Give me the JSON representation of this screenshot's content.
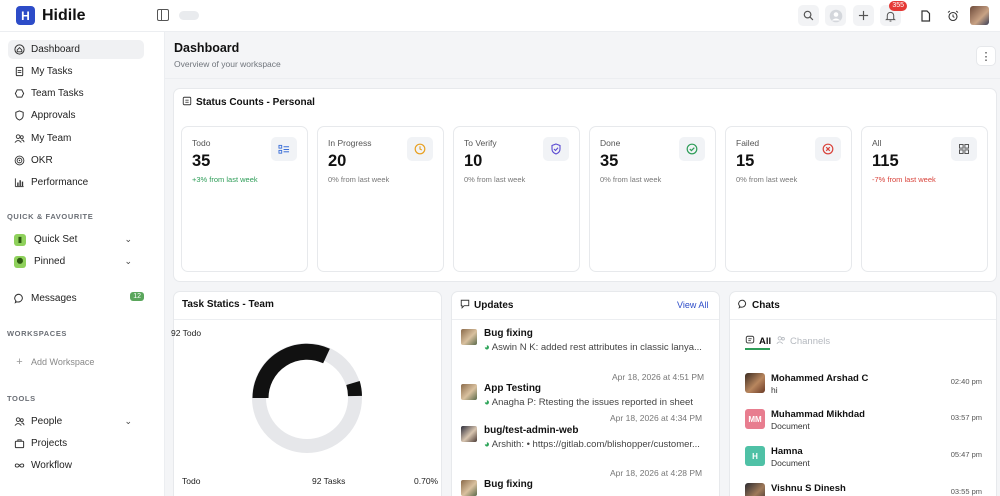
{
  "brand": {
    "logo_letter": "H",
    "name": "Hidile"
  },
  "topbar": {
    "notification_count": "355",
    "icons": [
      "sidebar-toggle-icon",
      "search-icon",
      "user-icon",
      "plus-icon",
      "bell-icon",
      "file-icon",
      "alarm-icon"
    ]
  },
  "sidebar": {
    "main_items": [
      {
        "label": "Dashboard",
        "icon": "home-icon",
        "active": true
      },
      {
        "label": "My Tasks",
        "icon": "clipboard-icon"
      },
      {
        "label": "Team Tasks",
        "icon": "team-tasks-icon"
      },
      {
        "label": "Approvals",
        "icon": "shield-icon"
      },
      {
        "label": "My Team",
        "icon": "users-icon"
      },
      {
        "label": "OKR",
        "icon": "target-icon"
      },
      {
        "label": "Performance",
        "icon": "bar-chart-icon"
      }
    ],
    "quick_favourite_label": "QUICK & FAVOURITE",
    "quick_items": [
      {
        "label": "Quick Set"
      },
      {
        "label": "Pinned"
      }
    ],
    "messages": {
      "label": "Messages",
      "count": "12"
    },
    "workspaces_label": "WORKSPACES",
    "add_workspace": "Add Workspace",
    "tools_label": "TOOLS",
    "tools_items": [
      {
        "label": "People",
        "has_chevron": true
      },
      {
        "label": "Projects"
      },
      {
        "label": "Workflow"
      }
    ]
  },
  "header": {
    "title": "Dashboard",
    "subtitle": "Overview of your workspace"
  },
  "status_counts": {
    "title": "Status Counts - Personal",
    "cards": [
      {
        "label": "Todo",
        "value": "35",
        "trend": "+3% from last week",
        "trend_dir": "up",
        "icon": "list-check-icon",
        "icon_color": "#3b6fd8"
      },
      {
        "label": "In Progress",
        "value": "20",
        "trend": "0% from last week",
        "trend_dir": "flat",
        "icon": "clock-icon",
        "icon_color": "#e8a020"
      },
      {
        "label": "To Verify",
        "value": "10",
        "trend": "0% from last week",
        "trend_dir": "flat",
        "icon": "shield-check-icon",
        "icon_color": "#5a4ad1"
      },
      {
        "label": "Done",
        "value": "35",
        "trend": "0% from last week",
        "trend_dir": "flat",
        "icon": "check-circle-icon",
        "icon_color": "#2e9d58"
      },
      {
        "label": "Failed",
        "value": "15",
        "trend": "0% from last week",
        "trend_dir": "flat",
        "icon": "x-circle-icon",
        "icon_color": "#d9433b"
      },
      {
        "label": "All",
        "value": "115",
        "trend": "-7% from last week",
        "trend_dir": "down",
        "icon": "grid-icon",
        "icon_color": "#555555"
      }
    ]
  },
  "task_statics": {
    "title": "Task Statics - Team",
    "chart_label": "92 Todo",
    "footer": {
      "label": "Todo",
      "tasks": "92 Tasks",
      "percent": "0.70%"
    }
  },
  "updates": {
    "title": "Updates",
    "view_all": "View All",
    "items": [
      {
        "title": "Bug fixing",
        "text": "Aswin N K: added rest attributes in classic lanya...",
        "time": "Apr 18, 2026 at 4:51 PM"
      },
      {
        "title": "App Testing",
        "text": "Anagha P: Rtesting the issues reported in sheet",
        "time": "Apr 18, 2026 at 4:34 PM"
      },
      {
        "title": "bug/test-admin-web",
        "text": "Arshith: • https://gitlab.com/blishopper/customer...",
        "time": "Apr 18, 2026 at 4:28 PM"
      },
      {
        "title": "Bug fixing",
        "text": "",
        "time": ""
      }
    ]
  },
  "chats": {
    "title": "Chats",
    "tabs": [
      "All",
      "Channels"
    ],
    "items": [
      {
        "name": "Mohammed Arshad C",
        "message": "hi",
        "time": "02:40 pm",
        "avatar_type": "photo",
        "initials": ""
      },
      {
        "name": "Muhammad Mikhdad",
        "message": "Document",
        "time": "03:57 pm",
        "avatar_type": "initials",
        "initials": "MM",
        "color": "#e87d8f"
      },
      {
        "name": "Hamna",
        "message": "Document",
        "time": "05:47 pm",
        "avatar_type": "initials",
        "initials": "H",
        "color": "#4fc1a6"
      },
      {
        "name": "Vishnu S Dinesh",
        "message": "",
        "time": "03:55 pm",
        "avatar_type": "photo",
        "initials": ""
      }
    ]
  }
}
